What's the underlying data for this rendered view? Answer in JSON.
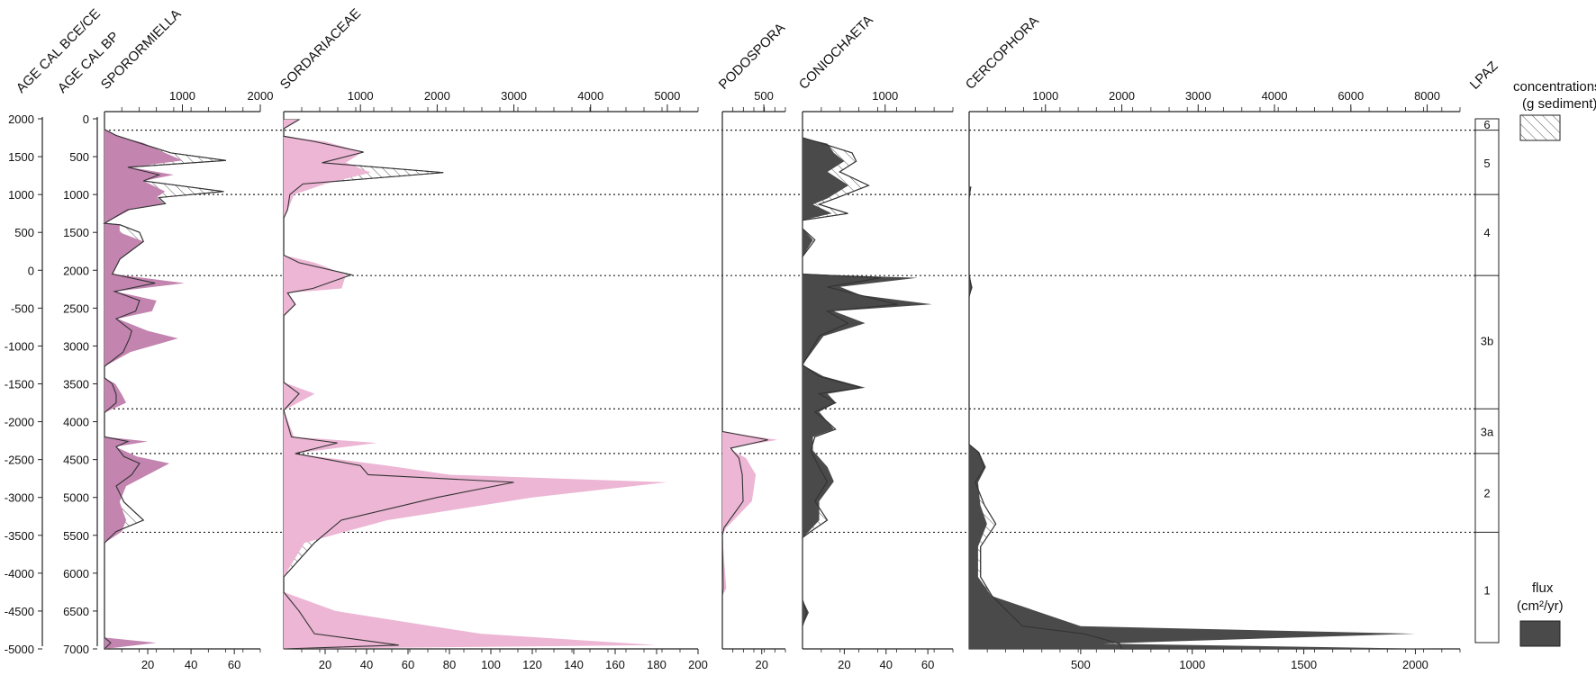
{
  "colors": {
    "pink_dark": "#c384b0",
    "pink_light": "#ecb6d4",
    "gray_dark": "#4a4a4a",
    "line": "#333333",
    "hatch": "#555555"
  },
  "headers": {
    "age_bce_ce": "AGE CAL BCE/CE",
    "age_bp": "AGE CAL BP",
    "lpaz": "LPAZ"
  },
  "legend": {
    "concentrations": "concentrations",
    "concentrations_unit": "(g sediment)",
    "flux": "flux",
    "flux_unit": "(cm²/yr)"
  },
  "chart_data": {
    "type": "area",
    "ylim_bp": [
      0,
      7000
    ],
    "age_bce_ce_ticks": [
      "2000",
      "1500",
      "1000",
      "500",
      "0",
      "-500",
      "-1000",
      "-1500",
      "-2000",
      "-2500",
      "-3000",
      "-3500",
      "-4000",
      "-4500",
      "-5000"
    ],
    "age_bp_ticks": [
      "0",
      "500",
      "1000",
      "1500",
      "2000",
      "2500",
      "3000",
      "3500",
      "4000",
      "4500",
      "5000",
      "5500",
      "6000",
      "6500",
      "7000"
    ],
    "zone_boundaries_bp": [
      150,
      1000,
      2070,
      3830,
      4420,
      5460
    ],
    "zones": [
      {
        "label": "6",
        "bp": 70
      },
      {
        "label": "5",
        "bp": 580
      },
      {
        "label": "4",
        "bp": 1500
      },
      {
        "label": "3b",
        "bp": 2930
      },
      {
        "label": "3a",
        "bp": 4130
      },
      {
        "label": "2",
        "bp": 4940
      },
      {
        "label": "1",
        "bp": 6220
      }
    ],
    "panels": [
      {
        "title": "SPORORMIELLA",
        "color": "#c384b0",
        "conc_ticks": [
          "1000",
          "2000"
        ],
        "conc_max": 2000,
        "flux_ticks": [
          "20",
          "40",
          "60"
        ],
        "flux_max": 72,
        "samples": [
          {
            "bp": 140,
            "flux": 0,
            "conc": 0
          },
          {
            "bp": 220,
            "flux": 5,
            "conc": 150
          },
          {
            "bp": 320,
            "flux": 18,
            "conc": 450
          },
          {
            "bp": 450,
            "flux": 28,
            "conc": 850
          },
          {
            "bp": 550,
            "flux": 36,
            "conc": 1560
          },
          {
            "bp": 640,
            "flux": 12,
            "conc": 300
          },
          {
            "bp": 740,
            "flux": 32,
            "conc": 700
          },
          {
            "bp": 820,
            "flux": 18,
            "conc": 500
          },
          {
            "bp": 960,
            "flux": 28,
            "conc": 1530
          },
          {
            "bp": 1040,
            "flux": 24,
            "conc": 700
          },
          {
            "bp": 1120,
            "flux": 27,
            "conc": 780
          },
          {
            "bp": 1200,
            "flux": 12,
            "conc": 300
          },
          {
            "bp": 1380,
            "flux": 0,
            "conc": 0
          },
          {
            "bp": 1400,
            "flux": 7,
            "conc": 200
          },
          {
            "bp": 1500,
            "flux": 7,
            "conc": 450
          },
          {
            "bp": 1620,
            "flux": 18,
            "conc": 500
          },
          {
            "bp": 1850,
            "flux": 7,
            "conc": 200
          },
          {
            "bp": 2050,
            "flux": 4,
            "conc": 100
          },
          {
            "bp": 2170,
            "flux": 37,
            "conc": 650
          },
          {
            "bp": 2280,
            "flux": 5,
            "conc": 130
          },
          {
            "bp": 2400,
            "flux": 24,
            "conc": 450
          },
          {
            "bp": 2540,
            "flux": 22,
            "conc": 400
          },
          {
            "bp": 2640,
            "flux": 6,
            "conc": 150
          },
          {
            "bp": 2800,
            "flux": 20,
            "conc": 350
          },
          {
            "bp": 2900,
            "flux": 34,
            "conc": 320
          },
          {
            "bp": 3080,
            "flux": 12,
            "conc": 240
          },
          {
            "bp": 3270,
            "flux": 0,
            "conc": 0
          },
          {
            "bp": 3420,
            "flux": 0,
            "conc": 0
          },
          {
            "bp": 3500,
            "flux": 5,
            "conc": 100
          },
          {
            "bp": 3640,
            "flux": 8,
            "conc": 150
          },
          {
            "bp": 3750,
            "flux": 10,
            "conc": 150
          },
          {
            "bp": 3880,
            "flux": 0,
            "conc": 0
          },
          {
            "bp": 4200,
            "flux": 0,
            "conc": 0
          },
          {
            "bp": 4260,
            "flux": 20,
            "conc": 300
          },
          {
            "bp": 4330,
            "flux": 5,
            "conc": 150
          },
          {
            "bp": 4460,
            "flux": 15,
            "conc": 250
          },
          {
            "bp": 4550,
            "flux": 30,
            "conc": 450
          },
          {
            "bp": 4700,
            "flux": 20,
            "conc": 350
          },
          {
            "bp": 4850,
            "flux": 10,
            "conc": 150
          },
          {
            "bp": 5060,
            "flux": 7,
            "conc": 250
          },
          {
            "bp": 5300,
            "flux": 10,
            "conc": 500
          },
          {
            "bp": 5450,
            "flux": 8,
            "conc": 150
          },
          {
            "bp": 5600,
            "flux": 0,
            "conc": 0
          },
          {
            "bp": 6850,
            "flux": 0,
            "conc": 0
          },
          {
            "bp": 6920,
            "flux": 24,
            "conc": 80
          },
          {
            "bp": 7000,
            "flux": 0,
            "conc": 0
          }
        ]
      },
      {
        "title": "SORDARIACEAE",
        "color": "#ecb6d4",
        "conc_ticks": [
          "1000",
          "2000",
          "3000",
          "4000",
          "5000"
        ],
        "conc_max": 5400,
        "flux_ticks": [
          "20",
          "40",
          "60",
          "80",
          "100",
          "120",
          "140",
          "160",
          "180",
          "200"
        ],
        "flux_max": 200,
        "samples": [
          {
            "bp": 10,
            "flux": 8,
            "conc": 200
          },
          {
            "bp": 130,
            "flux": 0,
            "conc": 0
          },
          {
            "bp": 230,
            "flux": 0,
            "conc": 0
          },
          {
            "bp": 300,
            "flux": 20,
            "conc": 400
          },
          {
            "bp": 440,
            "flux": 38,
            "conc": 1040
          },
          {
            "bp": 580,
            "flux": 30,
            "conc": 500
          },
          {
            "bp": 710,
            "flux": 42,
            "conc": 2080
          },
          {
            "bp": 860,
            "flux": 20,
            "conc": 250
          },
          {
            "bp": 1000,
            "flux": 5,
            "conc": 80
          },
          {
            "bp": 1200,
            "flux": 2,
            "conc": 50
          },
          {
            "bp": 1310,
            "flux": 0,
            "conc": 0
          },
          {
            "bp": 1800,
            "flux": 0,
            "conc": 0
          },
          {
            "bp": 1900,
            "flux": 15,
            "conc": 200
          },
          {
            "bp": 2060,
            "flux": 30,
            "conc": 880
          },
          {
            "bp": 2240,
            "flux": 28,
            "conc": 380
          },
          {
            "bp": 2300,
            "flux": 2,
            "conc": 50
          },
          {
            "bp": 2450,
            "flux": 6,
            "conc": 150
          },
          {
            "bp": 2600,
            "flux": 0,
            "conc": 0
          },
          {
            "bp": 3480,
            "flux": 0,
            "conc": 0
          },
          {
            "bp": 3630,
            "flux": 15,
            "conc": 200
          },
          {
            "bp": 3850,
            "flux": 0,
            "conc": 0
          },
          {
            "bp": 4200,
            "flux": 5,
            "conc": 100
          },
          {
            "bp": 4280,
            "flux": 45,
            "conc": 700
          },
          {
            "bp": 4420,
            "flux": 5,
            "conc": 150
          },
          {
            "bp": 4580,
            "flux": 50,
            "conc": 1000
          },
          {
            "bp": 4700,
            "flux": 80,
            "conc": 1100
          },
          {
            "bp": 4800,
            "flux": 185,
            "conc": 3000
          },
          {
            "bp": 5000,
            "flux": 120,
            "conc": 2000
          },
          {
            "bp": 5300,
            "flux": 50,
            "conc": 750
          },
          {
            "bp": 5600,
            "flux": 10,
            "conc": 400
          },
          {
            "bp": 6050,
            "flux": 0,
            "conc": 0
          },
          {
            "bp": 6250,
            "flux": 0,
            "conc": 0
          },
          {
            "bp": 6500,
            "flux": 25,
            "conc": 200
          },
          {
            "bp": 6800,
            "flux": 95,
            "conc": 400
          },
          {
            "bp": 6950,
            "flux": 180,
            "conc": 1500
          },
          {
            "bp": 7000,
            "flux": 0,
            "conc": 0
          }
        ]
      },
      {
        "title": "PODOSPORA",
        "color": "#ecb6d4",
        "conc_ticks": [
          "500"
        ],
        "conc_max": 760,
        "flux_ticks": [
          "20"
        ],
        "flux_max": 32,
        "samples": [
          {
            "bp": 4130,
            "flux": 0,
            "conc": 0
          },
          {
            "bp": 4240,
            "flux": 28,
            "conc": 550
          },
          {
            "bp": 4350,
            "flux": 3,
            "conc": 100
          },
          {
            "bp": 4480,
            "flux": 12,
            "conc": 200
          },
          {
            "bp": 4700,
            "flux": 17,
            "conc": 240
          },
          {
            "bp": 5050,
            "flux": 15,
            "conc": 250
          },
          {
            "bp": 5400,
            "flux": 2,
            "conc": 20
          },
          {
            "bp": 5500,
            "flux": 0,
            "conc": 0
          },
          {
            "bp": 6200,
            "flux": 2,
            "conc": 10
          },
          {
            "bp": 6300,
            "flux": 0,
            "conc": 0
          }
        ]
      },
      {
        "title": "CONIOCHAETA",
        "color": "#4a4a4a",
        "conc_ticks": [
          "1000"
        ],
        "conc_max": 1820,
        "flux_ticks": [
          "20",
          "40",
          "60"
        ],
        "flux_max": 72,
        "samples": [
          {
            "bp": 250,
            "flux": 0,
            "conc": 0
          },
          {
            "bp": 330,
            "flux": 12,
            "conc": 250
          },
          {
            "bp": 450,
            "flux": 15,
            "conc": 600
          },
          {
            "bp": 560,
            "flux": 20,
            "conc": 650
          },
          {
            "bp": 700,
            "flux": 12,
            "conc": 450
          },
          {
            "bp": 880,
            "flux": 22,
            "conc": 800
          },
          {
            "bp": 1050,
            "flux": 12,
            "conc": 400
          },
          {
            "bp": 1130,
            "flux": 5,
            "conc": 200
          },
          {
            "bp": 1250,
            "flux": 14,
            "conc": 550
          },
          {
            "bp": 1340,
            "flux": 0,
            "conc": 0
          },
          {
            "bp": 1450,
            "flux": 0,
            "conc": 0
          },
          {
            "bp": 1600,
            "flux": 5,
            "conc": 150
          },
          {
            "bp": 1820,
            "flux": 0,
            "conc": 0
          },
          {
            "bp": 2050,
            "flux": 0,
            "conc": 0
          },
          {
            "bp": 2100,
            "flux": 55,
            "conc": 950
          },
          {
            "bp": 2220,
            "flux": 18,
            "conc": 300
          },
          {
            "bp": 2330,
            "flux": 28,
            "conc": 700
          },
          {
            "bp": 2450,
            "flux": 62,
            "conc": 1150
          },
          {
            "bp": 2540,
            "flux": 15,
            "conc": 300
          },
          {
            "bp": 2700,
            "flux": 30,
            "conc": 550
          },
          {
            "bp": 2870,
            "flux": 10,
            "conc": 200
          },
          {
            "bp": 3250,
            "flux": 0,
            "conc": 0
          },
          {
            "bp": 3400,
            "flux": 10,
            "conc": 200
          },
          {
            "bp": 3550,
            "flux": 30,
            "conc": 700
          },
          {
            "bp": 3630,
            "flux": 12,
            "conc": 200
          },
          {
            "bp": 3750,
            "flux": 16,
            "conc": 400
          },
          {
            "bp": 3870,
            "flux": 8,
            "conc": 150
          },
          {
            "bp": 4000,
            "flux": 12,
            "conc": 300
          },
          {
            "bp": 4100,
            "flux": 15,
            "conc": 400
          },
          {
            "bp": 4200,
            "flux": 5,
            "conc": 150
          },
          {
            "bp": 4380,
            "flux": 5,
            "conc": 100
          },
          {
            "bp": 4600,
            "flux": 12,
            "conc": 200
          },
          {
            "bp": 4790,
            "flux": 15,
            "conc": 300
          },
          {
            "bp": 5050,
            "flux": 8,
            "conc": 150
          },
          {
            "bp": 5300,
            "flux": 8,
            "conc": 300
          },
          {
            "bp": 5450,
            "flux": 3,
            "conc": 100
          },
          {
            "bp": 5530,
            "flux": 0,
            "conc": 0
          },
          {
            "bp": 6350,
            "flux": 0,
            "conc": 0
          },
          {
            "bp": 6520,
            "flux": 3,
            "conc": 50
          },
          {
            "bp": 6700,
            "flux": 0,
            "conc": 0
          }
        ]
      },
      {
        "title": "CERCOPHORA",
        "color": "#4a4a4a",
        "conc_ticks": [
          "1000",
          "2000",
          "3000",
          "4000",
          "6000",
          "8000"
        ],
        "conc_tick_pos": [
          1000,
          2000,
          3000,
          4000,
          5000,
          6000
        ],
        "conc_max": 6430,
        "flux_ticks": [
          "500",
          "1000",
          "1500",
          "2000"
        ],
        "flux_max": 2200,
        "samples": [
          {
            "bp": 900,
            "flux": 10,
            "conc": 20
          },
          {
            "bp": 1050,
            "flux": 0,
            "conc": 0
          },
          {
            "bp": 2050,
            "flux": 0,
            "conc": 0
          },
          {
            "bp": 2230,
            "flux": 15,
            "conc": 30
          },
          {
            "bp": 2350,
            "flux": 0,
            "conc": 0
          },
          {
            "bp": 4300,
            "flux": 0,
            "conc": 0
          },
          {
            "bp": 4400,
            "flux": 45,
            "conc": 120
          },
          {
            "bp": 4600,
            "flux": 75,
            "conc": 200
          },
          {
            "bp": 4800,
            "flux": 40,
            "conc": 80
          },
          {
            "bp": 5100,
            "flux": 50,
            "conc": 200
          },
          {
            "bp": 5350,
            "flux": 80,
            "conc": 350
          },
          {
            "bp": 5650,
            "flux": 40,
            "conc": 150
          },
          {
            "bp": 6050,
            "flux": 40,
            "conc": 150
          },
          {
            "bp": 6300,
            "flux": 100,
            "conc": 300
          },
          {
            "bp": 6700,
            "flux": 500,
            "conc": 700
          },
          {
            "bp": 6800,
            "flux": 2000,
            "conc": 1500
          },
          {
            "bp": 6930,
            "flux": 600,
            "conc": 1970
          },
          {
            "bp": 7000,
            "flux": 2100,
            "conc": 2000
          }
        ]
      }
    ]
  }
}
